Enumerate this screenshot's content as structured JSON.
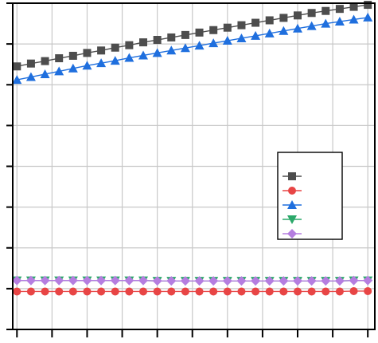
{
  "chart_data": {
    "type": "line",
    "x": [
      0,
      1,
      2,
      3,
      4,
      5,
      6,
      7,
      8,
      9,
      10,
      11,
      12,
      13,
      14,
      15,
      16,
      17,
      18,
      19,
      20,
      21,
      22,
      23,
      24,
      25
    ],
    "xlim": [
      -0.3,
      25.5
    ],
    "ylim": [
      0,
      8
    ],
    "grid": true,
    "x_minor_ticks": false,
    "legend": "right",
    "series": [
      {
        "marker": "square",
        "color": "#4d4d4d",
        "values": [
          6.45,
          6.52,
          6.58,
          6.65,
          6.71,
          6.78,
          6.84,
          6.91,
          6.97,
          7.04,
          7.1,
          7.16,
          7.22,
          7.28,
          7.34,
          7.4,
          7.46,
          7.52,
          7.58,
          7.64,
          7.7,
          7.76,
          7.81,
          7.86,
          7.91,
          7.96
        ]
      },
      {
        "marker": "circle",
        "color": "#e84545",
        "values": [
          0.93,
          0.93,
          0.93,
          0.93,
          0.93,
          0.93,
          0.93,
          0.93,
          0.93,
          0.93,
          0.93,
          0.93,
          0.93,
          0.93,
          0.93,
          0.93,
          0.93,
          0.93,
          0.93,
          0.93,
          0.93,
          0.93,
          0.93,
          0.93,
          0.94,
          0.94
        ]
      },
      {
        "marker": "triangle-up",
        "color": "#1f6fde",
        "values": [
          6.12,
          6.19,
          6.26,
          6.33,
          6.4,
          6.47,
          6.53,
          6.59,
          6.66,
          6.72,
          6.78,
          6.84,
          6.9,
          6.96,
          7.02,
          7.08,
          7.14,
          7.2,
          7.26,
          7.32,
          7.38,
          7.44,
          7.5,
          7.55,
          7.6,
          7.65
        ]
      },
      {
        "marker": "triangle-down",
        "color": "#2ca86a",
        "values": [
          1.2,
          1.2,
          1.2,
          1.2,
          1.2,
          1.2,
          1.2,
          1.2,
          1.2,
          1.2,
          1.19,
          1.19,
          1.19,
          1.19,
          1.19,
          1.19,
          1.19,
          1.19,
          1.19,
          1.19,
          1.19,
          1.19,
          1.19,
          1.19,
          1.2,
          1.2
        ]
      },
      {
        "marker": "diamond",
        "color": "#b57ee0",
        "values": [
          1.2,
          1.2,
          1.2,
          1.2,
          1.2,
          1.2,
          1.2,
          1.2,
          1.2,
          1.2,
          1.19,
          1.19,
          1.19,
          1.19,
          1.19,
          1.19,
          1.19,
          1.19,
          1.19,
          1.19,
          1.19,
          1.19,
          1.19,
          1.19,
          1.2,
          1.2
        ]
      }
    ]
  }
}
